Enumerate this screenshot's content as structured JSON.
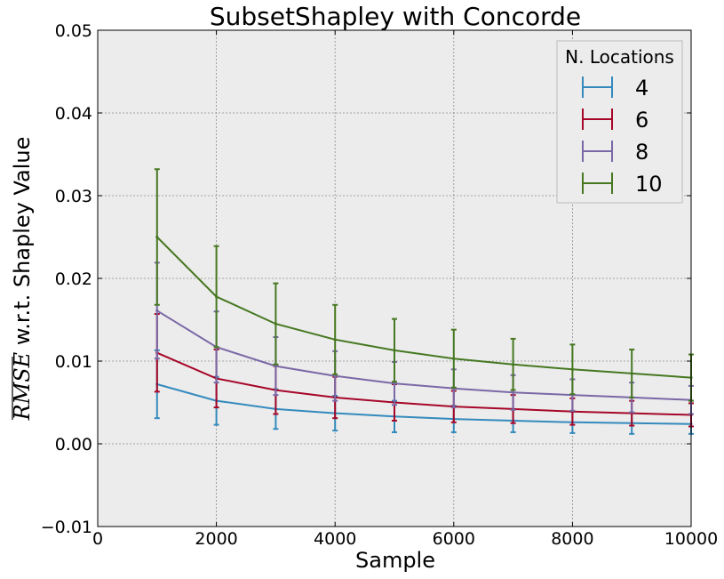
{
  "chart_data": {
    "type": "line",
    "title": "SubsetShapley with Concorde",
    "xlabel": "Sample",
    "ylabel_math": "RMSE",
    "ylabel_text": " w.r.t. Shapley Value",
    "xlim": [
      0,
      10000
    ],
    "ylim": [
      -0.01,
      0.05
    ],
    "x_ticks": [
      0,
      2000,
      4000,
      6000,
      8000,
      10000
    ],
    "x_tick_labels": [
      "0",
      "2000",
      "4000",
      "6000",
      "8000",
      "10000"
    ],
    "y_ticks": [
      -0.01,
      0.0,
      0.01,
      0.02,
      0.03,
      0.04,
      0.05
    ],
    "y_tick_labels": [
      "−0.01",
      "0.00",
      "0.01",
      "0.02",
      "0.03",
      "0.04",
      "0.05"
    ],
    "grid": true,
    "legend_title": "N. Locations",
    "legend_position": "top-right",
    "x": [
      1000,
      2000,
      3000,
      4000,
      5000,
      6000,
      7000,
      8000,
      9000,
      10000
    ],
    "series": [
      {
        "name": "4",
        "color": "#348abd",
        "values": [
          0.0072,
          0.0052,
          0.0042,
          0.0037,
          0.0033,
          0.003,
          0.0028,
          0.0026,
          0.0025,
          0.0024
        ],
        "errors": [
          0.0041,
          0.0029,
          0.0024,
          0.0021,
          0.0019,
          0.0016,
          0.0014,
          0.0013,
          0.0013,
          0.0012
        ]
      },
      {
        "name": "6",
        "color": "#a60628",
        "values": [
          0.011,
          0.0079,
          0.0065,
          0.0056,
          0.005,
          0.0045,
          0.0042,
          0.0039,
          0.0037,
          0.0035
        ],
        "errors": [
          0.0047,
          0.0035,
          0.0029,
          0.0025,
          0.0022,
          0.0019,
          0.0017,
          0.0016,
          0.0015,
          0.0014
        ]
      },
      {
        "name": "8",
        "color": "#7a68a6",
        "values": [
          0.0161,
          0.0117,
          0.0094,
          0.0082,
          0.0073,
          0.0067,
          0.0062,
          0.0059,
          0.0056,
          0.0053
        ],
        "errors": [
          0.0058,
          0.0043,
          0.0035,
          0.003,
          0.0026,
          0.0023,
          0.0021,
          0.0019,
          0.0018,
          0.0017
        ]
      },
      {
        "name": "10",
        "color": "#467821",
        "values": [
          0.025,
          0.0178,
          0.0145,
          0.0126,
          0.0113,
          0.0103,
          0.0096,
          0.009,
          0.0085,
          0.008
        ],
        "errors": [
          0.0082,
          0.0061,
          0.0049,
          0.0042,
          0.0038,
          0.0035,
          0.0031,
          0.003,
          0.0029,
          0.0028
        ]
      }
    ]
  }
}
